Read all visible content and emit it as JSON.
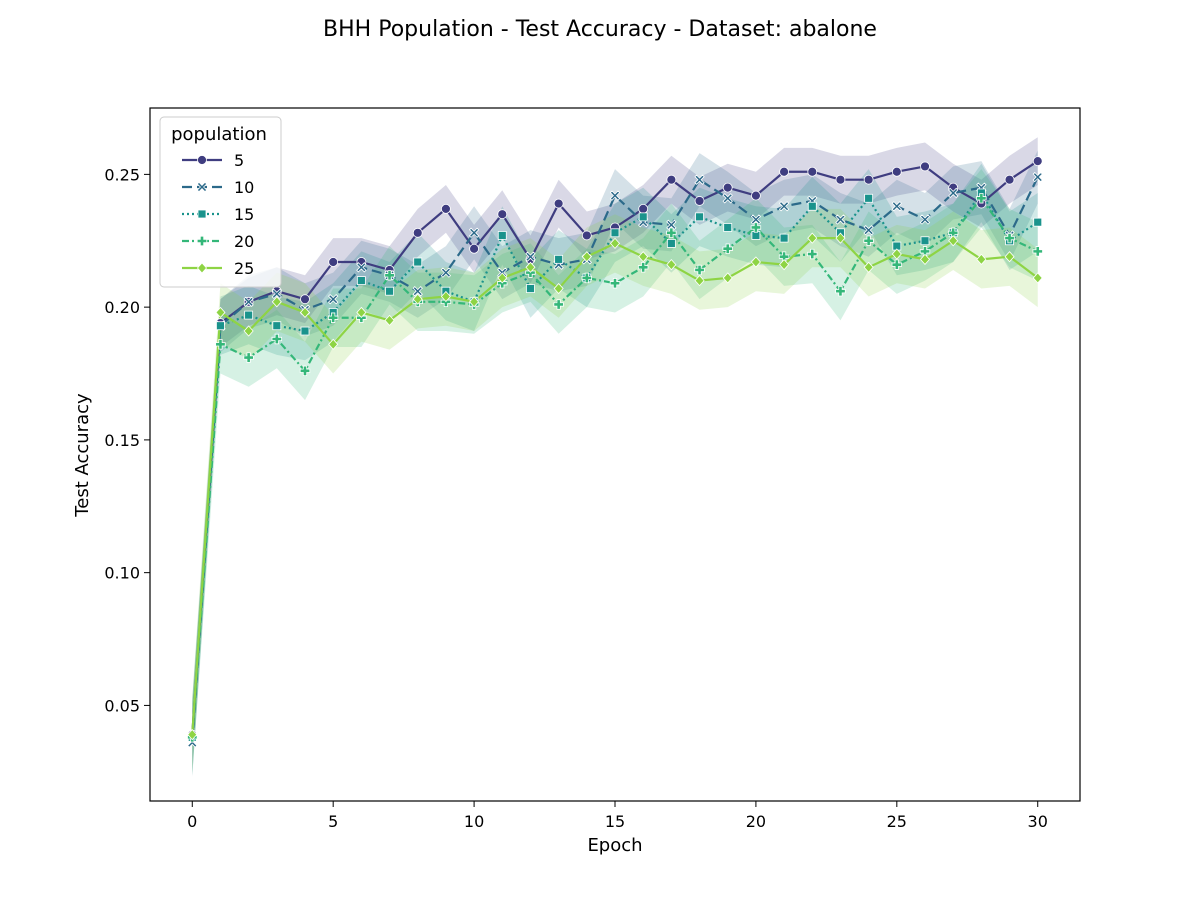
{
  "chart_data": {
    "type": "line",
    "title": "BHH Population - Test Accuracy - Dataset: abalone",
    "xlabel": "Epoch",
    "ylabel": "Test Accuracy",
    "xlim": [
      -1.5,
      31.5
    ],
    "ylim": [
      0.014,
      0.275
    ],
    "x_ticks": [
      0,
      5,
      10,
      15,
      20,
      25,
      30
    ],
    "x_tick_labels": [
      "0",
      "5",
      "10",
      "15",
      "20",
      "25",
      "30"
    ],
    "y_ticks": [
      0.05,
      0.1,
      0.15,
      0.2,
      0.25
    ],
    "y_tick_labels": [
      "0.05",
      "0.10",
      "0.15",
      "0.20",
      "0.25"
    ],
    "grid": false,
    "legend": {
      "title": "population",
      "placement": "top-left"
    },
    "x": [
      0,
      1,
      2,
      3,
      4,
      5,
      6,
      7,
      8,
      9,
      10,
      11,
      12,
      13,
      14,
      15,
      16,
      17,
      18,
      19,
      20,
      21,
      22,
      23,
      24,
      25,
      26,
      27,
      28,
      29,
      30
    ],
    "series": [
      {
        "name": "5",
        "color": "#3f3d80",
        "dash": "solid",
        "marker": "circle",
        "values": [
          0.039,
          0.194,
          0.202,
          0.206,
          0.203,
          0.217,
          0.217,
          0.214,
          0.228,
          0.237,
          0.222,
          0.235,
          0.218,
          0.239,
          0.227,
          0.23,
          0.237,
          0.248,
          0.24,
          0.245,
          0.242,
          0.251,
          0.251,
          0.248,
          0.248,
          0.251,
          0.253,
          0.245,
          0.239,
          0.248,
          0.255
        ],
        "band": 0.009
      },
      {
        "name": "10",
        "color": "#2c6a8a",
        "dash": "long",
        "marker": "x",
        "values": [
          0.036,
          0.193,
          0.202,
          0.205,
          0.199,
          0.203,
          0.215,
          0.212,
          0.206,
          0.213,
          0.228,
          0.213,
          0.219,
          0.216,
          0.218,
          0.242,
          0.232,
          0.231,
          0.248,
          0.241,
          0.233,
          0.238,
          0.24,
          0.233,
          0.229,
          0.238,
          0.233,
          0.243,
          0.245,
          0.227,
          0.249
        ],
        "band": 0.01
      },
      {
        "name": "15",
        "color": "#1a938c",
        "dash": "dotted",
        "marker": "square",
        "values": [
          0.038,
          0.193,
          0.197,
          0.193,
          0.191,
          0.198,
          0.21,
          0.206,
          0.217,
          0.206,
          0.202,
          0.227,
          0.207,
          0.218,
          0.211,
          0.228,
          0.234,
          0.224,
          0.234,
          0.23,
          0.227,
          0.226,
          0.238,
          0.228,
          0.241,
          0.223,
          0.225,
          0.228,
          0.243,
          0.225,
          0.232
        ],
        "band": 0.011
      },
      {
        "name": "20",
        "color": "#34b779",
        "dash": "dashdot",
        "marker": "plus",
        "values": [
          0.038,
          0.186,
          0.181,
          0.188,
          0.176,
          0.196,
          0.196,
          0.212,
          0.202,
          0.202,
          0.201,
          0.209,
          0.213,
          0.201,
          0.211,
          0.209,
          0.215,
          0.228,
          0.214,
          0.222,
          0.23,
          0.219,
          0.22,
          0.206,
          0.225,
          0.216,
          0.221,
          0.228,
          0.241,
          0.226,
          0.221
        ],
        "band": 0.011
      },
      {
        "name": "25",
        "color": "#8ed444",
        "dash": "solid",
        "marker": "diamond",
        "values": [
          0.039,
          0.198,
          0.191,
          0.202,
          0.198,
          0.186,
          0.198,
          0.195,
          0.203,
          0.204,
          0.202,
          0.211,
          0.215,
          0.207,
          0.219,
          0.224,
          0.219,
          0.216,
          0.21,
          0.211,
          0.217,
          0.216,
          0.226,
          0.226,
          0.215,
          0.22,
          0.218,
          0.225,
          0.218,
          0.219,
          0.211
        ],
        "band": 0.011
      }
    ]
  }
}
